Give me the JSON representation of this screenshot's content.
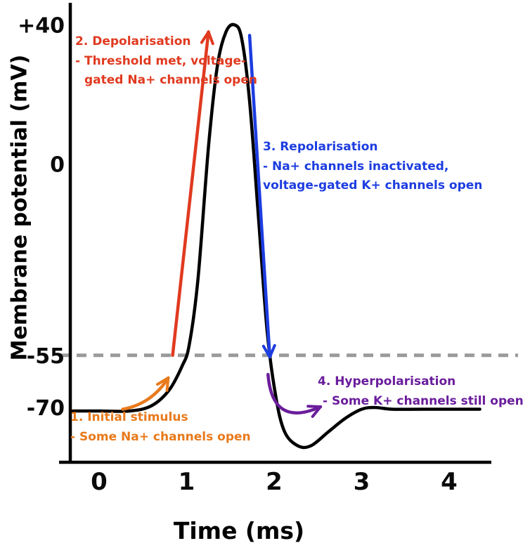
{
  "chart_data": {
    "type": "line",
    "title": "",
    "xlabel": "Time (ms)",
    "ylabel": "Membrane potential (mV)",
    "xlim": [
      -0.45,
      4.55
    ],
    "ylim": [
      -86,
      46
    ],
    "grid": false,
    "x_ticks": [
      {
        "value": 0,
        "label": "0"
      },
      {
        "value": 1,
        "label": "1"
      },
      {
        "value": 2,
        "label": "2"
      },
      {
        "value": 3,
        "label": "3"
      },
      {
        "value": 4,
        "label": "4"
      }
    ],
    "y_ticks": [
      {
        "value": 40,
        "label": "+40"
      },
      {
        "value": 0,
        "label": "0"
      },
      {
        "value": -55,
        "label": "-55"
      },
      {
        "value": -70,
        "label": "-70"
      }
    ],
    "threshold_line": {
      "value": -55,
      "style": "dashed",
      "color": "#9a9a9a"
    },
    "series": [
      {
        "name": "membrane-potential",
        "color": "#000000",
        "points_ms_mv": [
          [
            -0.3,
            -71
          ],
          [
            0.0,
            -71
          ],
          [
            0.35,
            -71
          ],
          [
            0.6,
            -69.5
          ],
          [
            0.8,
            -65
          ],
          [
            0.95,
            -58
          ],
          [
            1.03,
            -52
          ],
          [
            1.13,
            -33
          ],
          [
            1.25,
            5
          ],
          [
            1.35,
            28
          ],
          [
            1.45,
            38
          ],
          [
            1.55,
            40
          ],
          [
            1.63,
            36
          ],
          [
            1.72,
            18
          ],
          [
            1.82,
            -15
          ],
          [
            1.92,
            -48
          ],
          [
            2.02,
            -67
          ],
          [
            2.12,
            -77
          ],
          [
            2.27,
            -81
          ],
          [
            2.42,
            -81
          ],
          [
            2.62,
            -77
          ],
          [
            2.82,
            -73
          ],
          [
            3.0,
            -70.5
          ],
          [
            3.15,
            -70
          ],
          [
            3.35,
            -70.5
          ],
          [
            3.7,
            -70.5
          ],
          [
            4.35,
            -70.5
          ]
        ]
      }
    ],
    "annotations": [
      {
        "id": "initial-stimulus",
        "color": "#e87a1c",
        "lines": [
          "1. Initial stimulus",
          "- Some Na+ channels open"
        ],
        "arrow": {
          "shape": "curved",
          "from": [
            0.27,
            -70.5
          ],
          "ctrl": [
            0.6,
            -69.0
          ],
          "to": [
            0.79,
            -61.5
          ]
        }
      },
      {
        "id": "depolarisation",
        "color": "#e03a20",
        "lines": [
          "2. Depolarisation",
          "- Threshold met, voltage-",
          "gated Na+ channels open"
        ],
        "arrow": {
          "shape": "straight",
          "from": [
            0.84,
            -55
          ],
          "to": [
            1.25,
            38
          ]
        }
      },
      {
        "id": "repolarisation",
        "color": "#1d3de0",
        "lines": [
          "3. Repolarisation",
          "- Na+ channels inactivated,",
          "voltage-gated K+ channels open"
        ],
        "arrow": {
          "shape": "straight",
          "from": [
            1.72,
            37
          ],
          "to": [
            1.95,
            -55.5
          ]
        }
      },
      {
        "id": "hyperpolarisation",
        "color": "#6a1d9c",
        "lines": [
          "4. Hyperpolarisation",
          "- Some K+ channels still open"
        ],
        "arrow": {
          "shape": "curved",
          "from": [
            1.93,
            -60.5
          ],
          "ctrl": [
            1.98,
            -76.0
          ],
          "to": [
            2.53,
            -69.8
          ]
        }
      }
    ]
  }
}
